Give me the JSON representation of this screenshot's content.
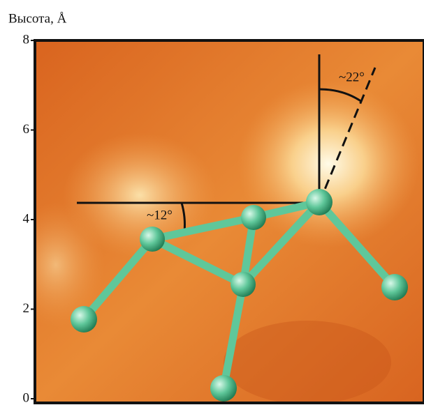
{
  "chart_data": {
    "type": "image-plot",
    "ylabel": "Высота, Å",
    "ylim": [
      0,
      8
    ],
    "yticks": [
      0,
      2,
      4,
      6,
      8
    ],
    "annotations": [
      "~22°",
      "~12°"
    ]
  }
}
